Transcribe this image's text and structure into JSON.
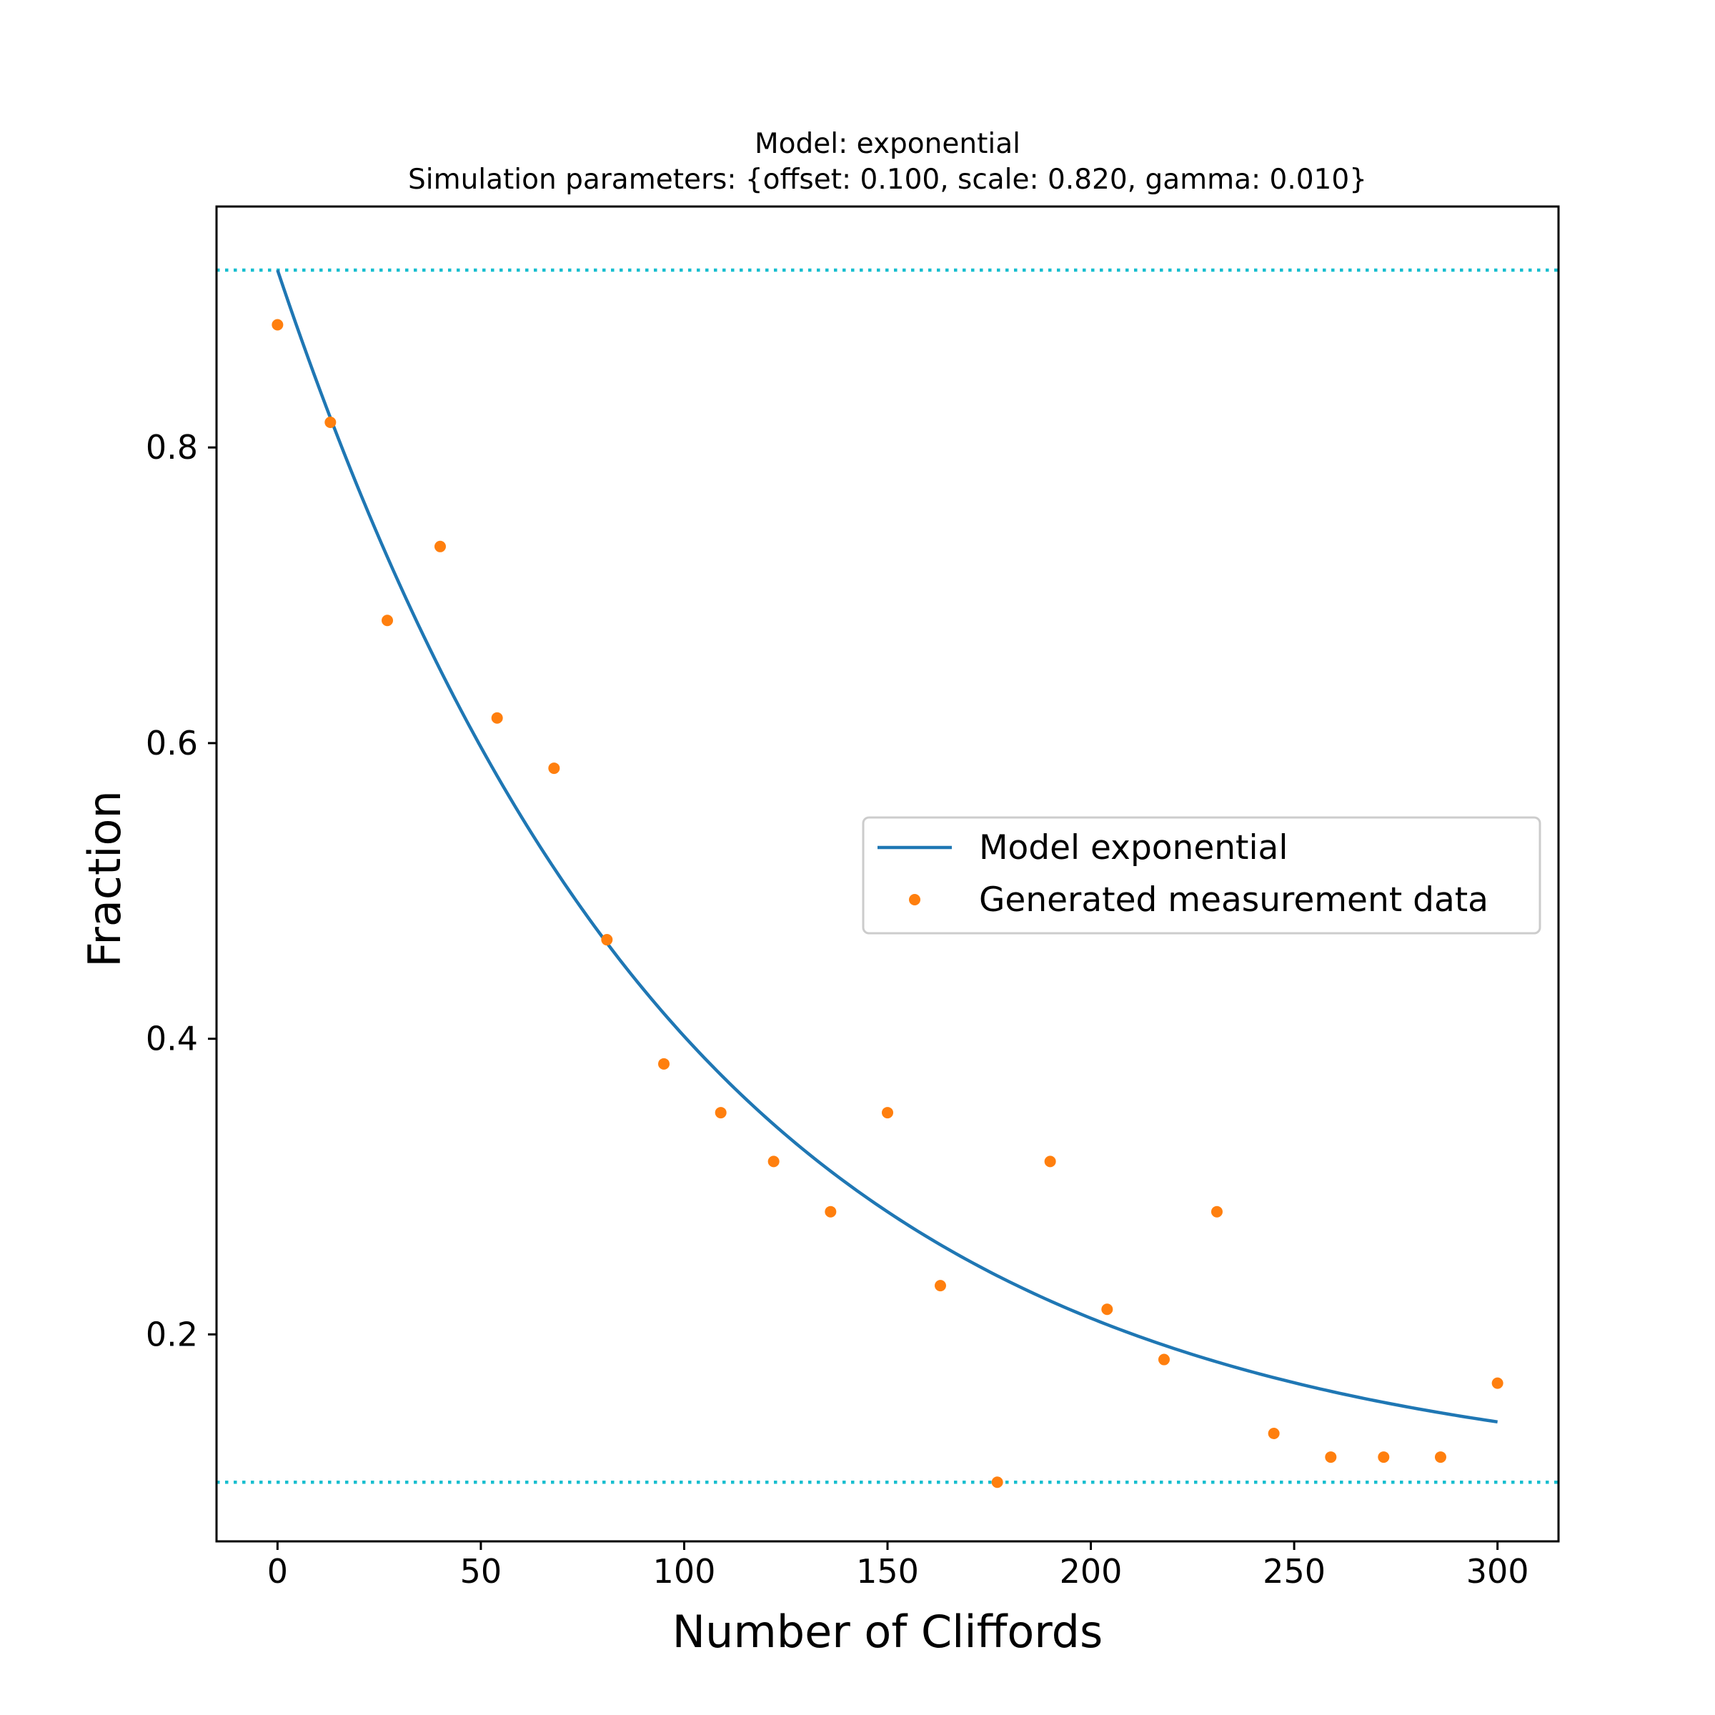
{
  "chart_data": {
    "type": "line",
    "title": "Model: exponential",
    "subtitle": "Simulation parameters: {offset: 0.100, scale: 0.820, gamma: 0.010}",
    "xlabel": "Number of Cliffords",
    "ylabel": "Fraction",
    "xlim": [
      -15,
      315
    ],
    "ylim": [
      0.06,
      0.963
    ],
    "x_ticks": [
      0,
      50,
      100,
      150,
      200,
      250,
      300
    ],
    "x_tick_labels": [
      "0",
      "50",
      "100",
      "150",
      "200",
      "250",
      "300"
    ],
    "y_ticks": [
      0.2,
      0.4,
      0.6,
      0.8
    ],
    "y_tick_labels": [
      "0.2",
      "0.4",
      "0.6",
      "0.8"
    ],
    "grid": false,
    "legend_position": "center-right",
    "colors": {
      "model": "#1f77b4",
      "data": "#ff7f0e",
      "bounds": "#17becf"
    },
    "series": [
      {
        "name": "Model exponential",
        "kind": "line",
        "model": {
          "offset": 0.1,
          "scale": 0.82,
          "gamma": 0.01
        },
        "x_range": [
          0,
          300
        ]
      },
      {
        "name": "Generated measurement data",
        "kind": "scatter",
        "x": [
          0,
          13,
          27,
          40,
          54,
          68,
          81,
          95,
          109,
          122,
          136,
          150,
          163,
          177,
          190,
          204,
          218,
          231,
          245,
          259,
          272,
          286,
          300
        ],
        "y": [
          0.883,
          0.817,
          0.683,
          0.733,
          0.617,
          0.583,
          0.467,
          0.383,
          0.35,
          0.317,
          0.283,
          0.35,
          0.233,
          0.1,
          0.317,
          0.217,
          0.183,
          0.283,
          0.133,
          0.117,
          0.117,
          0.117,
          0.167
        ]
      }
    ],
    "reference_lines": [
      {
        "axis": "y",
        "value": 0.92,
        "style": "dotted"
      },
      {
        "axis": "y",
        "value": 0.1,
        "style": "dotted"
      }
    ]
  }
}
